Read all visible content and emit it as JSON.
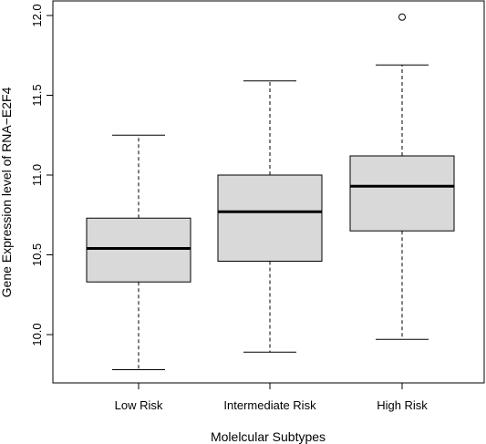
{
  "chart_data": {
    "type": "boxplot",
    "title": "",
    "xlabel": "Molelcular Subtypes",
    "ylabel": "Gene Expression level of  RNA−E2F4",
    "categories": [
      "Low Risk",
      "Intermediate Risk",
      "High Risk"
    ],
    "boxes": [
      {
        "category": "Low Risk",
        "whisker_low": 9.78,
        "q1": 10.33,
        "median": 10.54,
        "q3": 10.73,
        "whisker_high": 11.25,
        "outliers": []
      },
      {
        "category": "Intermediate Risk",
        "whisker_low": 9.89,
        "q1": 10.46,
        "median": 10.77,
        "q3": 11.0,
        "whisker_high": 11.59,
        "outliers": []
      },
      {
        "category": "High Risk",
        "whisker_low": 9.97,
        "q1": 10.65,
        "median": 10.93,
        "q3": 11.12,
        "whisker_high": 11.69,
        "outliers": [
          11.99
        ]
      }
    ],
    "yticks": [
      "10.0",
      "10.5",
      "11.0",
      "11.5",
      "12.0"
    ],
    "ylim": [
      9.74,
      12.03
    ],
    "grid": false,
    "legend": "none",
    "box_fill": "#d9d9d9",
    "line_color": "#000000"
  }
}
